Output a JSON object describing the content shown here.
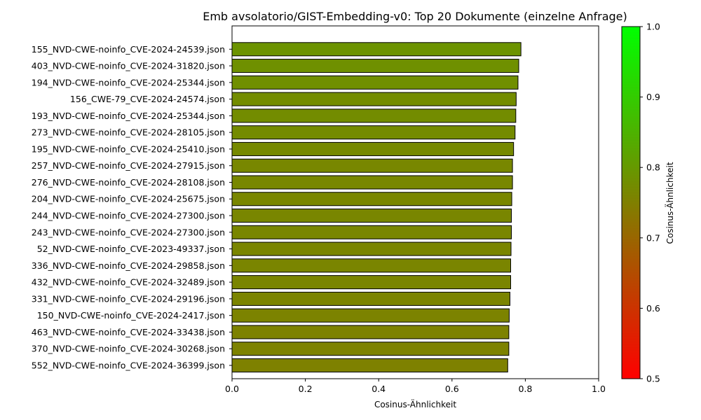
{
  "chart_data": {
    "type": "bar",
    "orientation": "horizontal",
    "title": "Emb avsolatorio/GIST-Embedding-v0: Top 20 Dokumente (einzelne Anfrage)",
    "xlabel": "Cosinus-Ähnlichkeit",
    "ylabel": "",
    "xlim": [
      0.0,
      1.0
    ],
    "xticks": [
      "0.0",
      "0.2",
      "0.4",
      "0.6",
      "0.8",
      "1.0"
    ],
    "categories": [
      "155_NVD-CWE-noinfo_CVE-2024-24539.json",
      "403_NVD-CWE-noinfo_CVE-2024-31820.json",
      "194_NVD-CWE-noinfo_CVE-2024-25344.json",
      "156_CWE-79_CVE-2024-24574.json",
      "193_NVD-CWE-noinfo_CVE-2024-25344.json",
      "273_NVD-CWE-noinfo_CVE-2024-28105.json",
      "195_NVD-CWE-noinfo_CVE-2024-25410.json",
      "257_NVD-CWE-noinfo_CVE-2024-27915.json",
      "276_NVD-CWE-noinfo_CVE-2024-28108.json",
      "204_NVD-CWE-noinfo_CVE-2024-25675.json",
      "244_NVD-CWE-noinfo_CVE-2024-27300.json",
      "243_NVD-CWE-noinfo_CVE-2024-27300.json",
      "52_NVD-CWE-noinfo_CVE-2023-49337.json",
      "336_NVD-CWE-noinfo_CVE-2024-29858.json",
      "432_NVD-CWE-noinfo_CVE-2024-32489.json",
      "331_NVD-CWE-noinfo_CVE-2024-29196.json",
      "150_NVD-CWE-noinfo_CVE-2024-2417.json",
      "463_NVD-CWE-noinfo_CVE-2024-33438.json",
      "370_NVD-CWE-noinfo_CVE-2024-30268.json",
      "552_NVD-CWE-noinfo_CVE-2024-36399.json"
    ],
    "values": [
      0.788,
      0.782,
      0.78,
      0.775,
      0.774,
      0.772,
      0.768,
      0.765,
      0.765,
      0.763,
      0.762,
      0.762,
      0.761,
      0.76,
      0.76,
      0.758,
      0.756,
      0.755,
      0.755,
      0.752
    ],
    "colorbar": {
      "label": "Cosinus-Ähnlichkeit",
      "range": [
        0.5,
        1.0
      ],
      "ticks": [
        "0.5",
        "0.6",
        "0.7",
        "0.8",
        "0.9",
        "1.0"
      ],
      "color_low": "#ff0000",
      "color_high": "#00ff00"
    },
    "bar_edge_color": "#000000",
    "grid": false,
    "legend": "none"
  }
}
